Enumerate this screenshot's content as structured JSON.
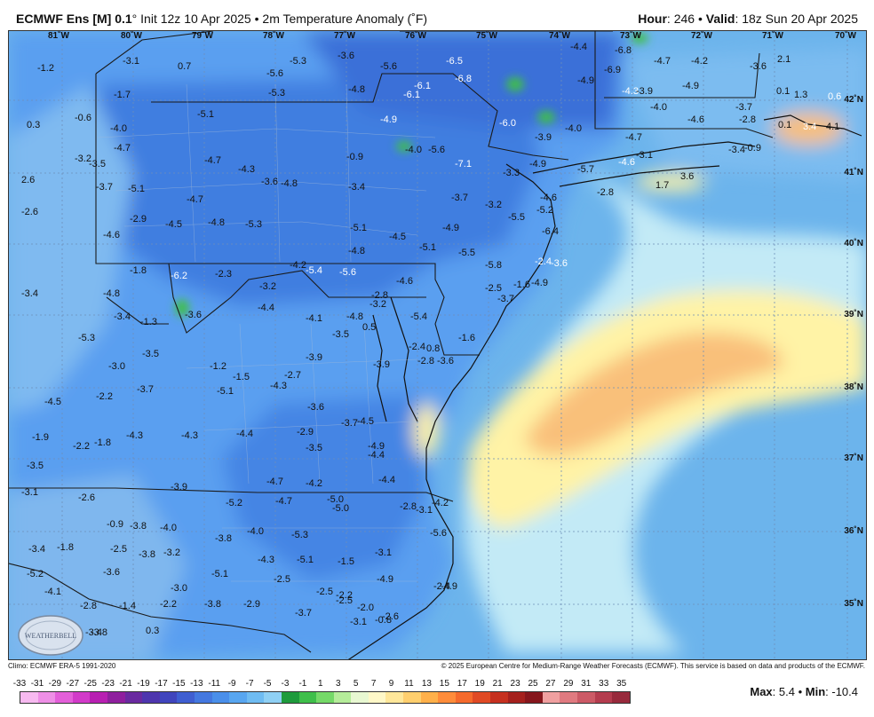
{
  "header": {
    "model": "ECMWF Ens [M] 0.1",
    "deg": "°",
    "init": " Init 12z 10 Apr 2025",
    "bullet": " • ",
    "product": "2m Temperature Anomaly (˚F)",
    "hour_label": "Hour",
    "hour_value": ": 246",
    "valid_label": "Valid",
    "valid_value": ": 18z Sun 20 Apr 2025"
  },
  "longitudes": [
    "81˚W",
    "80˚W",
    "79˚W",
    "78˚W",
    "77˚W",
    "76˚W",
    "75˚W",
    "74˚W",
    "73˚W",
    "72˚W",
    "71˚W",
    "70˚W"
  ],
  "latitudes": [
    "42˚N",
    "41˚N",
    "40˚N",
    "39˚N",
    "38˚N",
    "37˚N",
    "36˚N",
    "35˚N"
  ],
  "anomaly_values": [
    "-1.2",
    "-3.1",
    "0.7",
    "-5.3",
    "-5.6",
    "-3.6",
    "-5.6",
    "-6.5",
    "-6.8",
    "-4.4",
    "-6.8",
    "-6.9",
    "-4.7",
    "-4.2",
    "-3.6",
    "2.1",
    "-1.7",
    "-5.3",
    "-4.8",
    "-6.1",
    "-6.1",
    "-4.9",
    "-4.3",
    "-3.9",
    "-4.9",
    "0.1",
    "1.3",
    "0.6",
    "-0.6",
    "-5.1",
    "-4.9",
    "-6.0",
    "-4.0",
    "-4.6",
    "-3.7",
    "-2.8",
    "0.1",
    "3.4",
    "4.1",
    "0.3",
    "-4.0",
    "-3.9",
    "-4.0",
    "-4.7",
    "-3.4",
    "-0.9",
    "-4.7",
    "-4.0",
    "-5.6",
    "-7.1",
    "-4.6",
    "-3.1",
    "-0.9",
    "-3.2",
    "-3.5",
    "-4.7",
    "-4.3",
    "-3.6",
    "-4.8",
    "-3.3",
    "-4.9",
    "-5.7",
    "-2.8",
    "1.7",
    "3.6",
    "2.6",
    "-3.4",
    "-3.7",
    "-5.1",
    "-4.7",
    "-3.7",
    "-4.6",
    "-2.6",
    "-2.9",
    "-4.5",
    "-4.8",
    "-5.3",
    "-3.2",
    "-5.5",
    "-5.2",
    "-4.6",
    "-5.1",
    "-4.5",
    "-4.9",
    "-5.1",
    "-6.4",
    "-1.8",
    "-4.8",
    "-5.5",
    "-5.8",
    "-2.4",
    "-3.6",
    "-4.8",
    "-6.2",
    "-2.3",
    "-4.2",
    "-5.4",
    "-5.6",
    "-4.6",
    "-2.5",
    "-1.6",
    "-4.9",
    "-3.2",
    "-2.8",
    "-3.2",
    "-3.4",
    "-1.3",
    "-3.6",
    "-4.4",
    "-4.1",
    "-4.8",
    "0.5",
    "-5.4",
    "-3.7",
    "-3.4",
    "-3.5",
    "-3.9",
    "-3.5",
    "-2.7",
    "-1.6",
    "-2.4",
    "0.8",
    "-5.3",
    "-1.2",
    "-1.5",
    "-3.9",
    "-3.6",
    "-2.8",
    "-3.0",
    "-5.1",
    "-4.3",
    "-3.7",
    "-2.2",
    "-4.5",
    "-3.6",
    "-3.7",
    "-1.9",
    "-2.2",
    "-1.8",
    "-4.3",
    "-4.3",
    "-4.4",
    "-2.9",
    "-3.5",
    "-4.5",
    "-4.9",
    "-4.2",
    "-3.5",
    "-3.9",
    "-4.7",
    "-4.2",
    "-5.0",
    "-4.4",
    "-4.4",
    "-3.1",
    "-2.6",
    "-5.2",
    "-4.7",
    "-5.0",
    "-2.8",
    "-3.1",
    "-0.9",
    "-3.8",
    "-4.0",
    "-4.0",
    "-5.3",
    "-5.6",
    "-3.4",
    "-1.8",
    "-2.5",
    "-3.8",
    "-3.2",
    "-3.8",
    "-4.3",
    "-5.1",
    "-1.5",
    "-3.1",
    "-4.9",
    "-4.9",
    "-5.2",
    "-3.6",
    "-5.1",
    "-2.5",
    "-2.5",
    "-2.2",
    "-2.0",
    "-2.6",
    "-2.4",
    "-3.0",
    "-4.1",
    "-2.8",
    "-1.4",
    "-2.2",
    "-3.8",
    "-2.9",
    "-2.5",
    "-3.8",
    "-3.4",
    "-3.7",
    "-3.1",
    "-0.8",
    "-3.8",
    "0.3"
  ],
  "footer": {
    "climo": "Climo: ECMWF ERA-5 1991-2020",
    "copyright": "© 2025 European Centre for Medium-Range Weather Forecasts (ECMWF). This service is based on data and products of the ECMWF."
  },
  "scale": {
    "ticks": [
      "-33",
      "-31",
      "-29",
      "-27",
      "-25",
      "-23",
      "-21",
      "-19",
      "-17",
      "-15",
      "-13",
      "-11",
      "-9",
      "-7",
      "-5",
      "-3",
      "-1",
      "1",
      "3",
      "5",
      "7",
      "9",
      "11",
      "13",
      "15",
      "17",
      "19",
      "21",
      "23",
      "25",
      "27",
      "29",
      "31",
      "33",
      "35"
    ],
    "colors": [
      "#f7b9f0",
      "#ee8fe6",
      "#e35fd9",
      "#d23ac9",
      "#b81fb2",
      "#8f1f9e",
      "#6a2aa0",
      "#4e36ae",
      "#4045bd",
      "#3f5ed1",
      "#4478e0",
      "#4a8fea",
      "#58a6f0",
      "#6fbcf2",
      "#8fd0f4",
      "#1e9b3c",
      "#3fbf4a",
      "#75d968",
      "#b5ec9a",
      "#e8f8d2",
      "#fff8c8",
      "#ffe79a",
      "#ffcf6e",
      "#ffb04a",
      "#ff8c3a",
      "#f56a2c",
      "#e04a24",
      "#c6301f",
      "#a5201d",
      "#86161c",
      "#f0a0a0",
      "#e07a80",
      "#cc5a66",
      "#b43c4e",
      "#982a3c"
    ]
  },
  "stats": {
    "max_label": "Max",
    "max_value": ": 5.4",
    "sep": " • ",
    "min_label": "Min",
    "min_value": ": -10.4"
  },
  "colors": {
    "deep_blue": "#3a6fd8",
    "mid_blue": "#5a9ff0",
    "light_blue": "#8fc9f2",
    "pale_cyan": "#c3eaf6",
    "ocean_blue": "#6cb4ec",
    "yellow": "#fff3a6",
    "orange": "#f9c07a",
    "green": "#3fbf4a"
  }
}
